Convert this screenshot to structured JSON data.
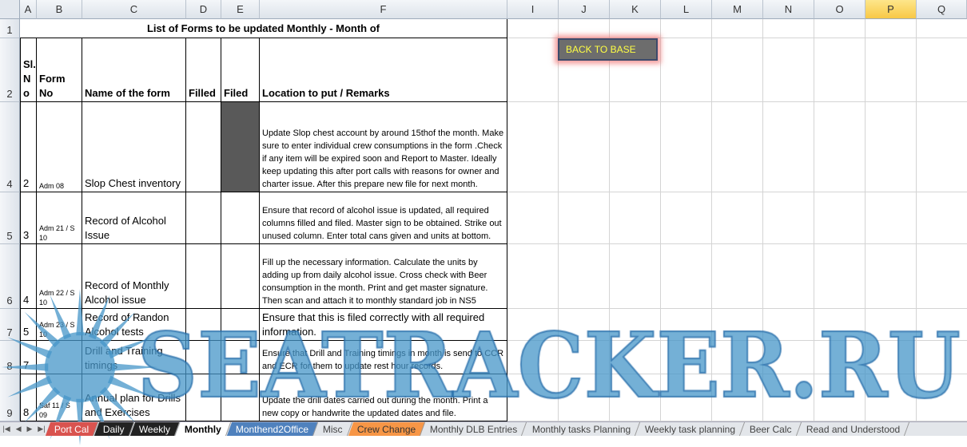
{
  "columns": [
    "A",
    "B",
    "C",
    "D",
    "E",
    "F",
    "I",
    "J",
    "K",
    "L",
    "M",
    "N",
    "O",
    "P",
    "Q"
  ],
  "selected_column": "P",
  "row_numbers": [
    "1",
    "2",
    "4",
    "5",
    "6",
    "7",
    "8",
    "9"
  ],
  "title": "List of Forms to be updated Monthly - Month of",
  "headers": {
    "sl_no": "Sl. N o",
    "form_no": "Form No",
    "name": "Name of the form",
    "filled": "Filled",
    "filed": "Filed",
    "remarks": "Location to put / Remarks"
  },
  "rows": [
    {
      "sl": "2",
      "form": "Adm 08",
      "name": "Slop Chest inventory",
      "filed_fill": "#595959",
      "remarks": "Update Slop chest account by around 15thof the month. Make sure to enter individual crew consumptions in the form .Check if any item will be expired soon and Report to Master. Ideally keep updating this after port calls with reasons for owner and charter issue. After this prepare new file for next month."
    },
    {
      "sl": "3",
      "form": "Adm 21 / S 10",
      "name": "Record of Alcohol Issue",
      "remarks": "Ensure that record of alcohol issue is updated, all required columns filled and filed. Master sign to be obtained.  Strike out unused column. Enter total cans given and units at bottom."
    },
    {
      "sl": "4",
      "form": "Adm 22 / S 10",
      "name": "Record of Monthly Alcohol issue",
      "remarks": "Fill up the necessary information. Calculate the units by adding up from daily alcohol issue. Cross check with Beer consumption in the month. Print and get master signature. Then scan and attach it to monthly standard job in NS5"
    },
    {
      "sl": "5",
      "form": "Adm 23 / S 10",
      "name": "Record of Randon Alcohol tests",
      "remarks": "Ensure that this is filed correctly with all required information."
    },
    {
      "sl": "7",
      "form": "",
      "name": "Drill and Training timings",
      "remarks": "Ensure that Drill and Training timings in month is send to CCR and ECR for them to update rest hour records."
    },
    {
      "sl": "8",
      "form": "Saf 11 / S 09",
      "name": "Annual plan for Drills and Exercises",
      "remarks": "Update the drill dates carried out during the month. Print a new copy or handwrite the updated dates and file."
    }
  ],
  "button": {
    "label": "BACK TO BASE"
  },
  "sheet_tabs": [
    {
      "label": "Port Cal",
      "color": "#d9534f"
    },
    {
      "label": "Daily",
      "color": "#222222"
    },
    {
      "label": "Weekly",
      "color": "#222222"
    },
    {
      "label": "Monthly",
      "active": true
    },
    {
      "label": "Monthend2Office",
      "color": "#4f81bd"
    },
    {
      "label": "Misc"
    },
    {
      "label": "Crew Change",
      "color": "#f79646"
    },
    {
      "label": "Monthly DLB Entries"
    },
    {
      "label": "Monthly tasks Planning"
    },
    {
      "label": "Weekly task planning"
    },
    {
      "label": "Beer Calc"
    },
    {
      "label": "Read and Understood"
    }
  ],
  "watermark": "SEATRACKER.RU"
}
